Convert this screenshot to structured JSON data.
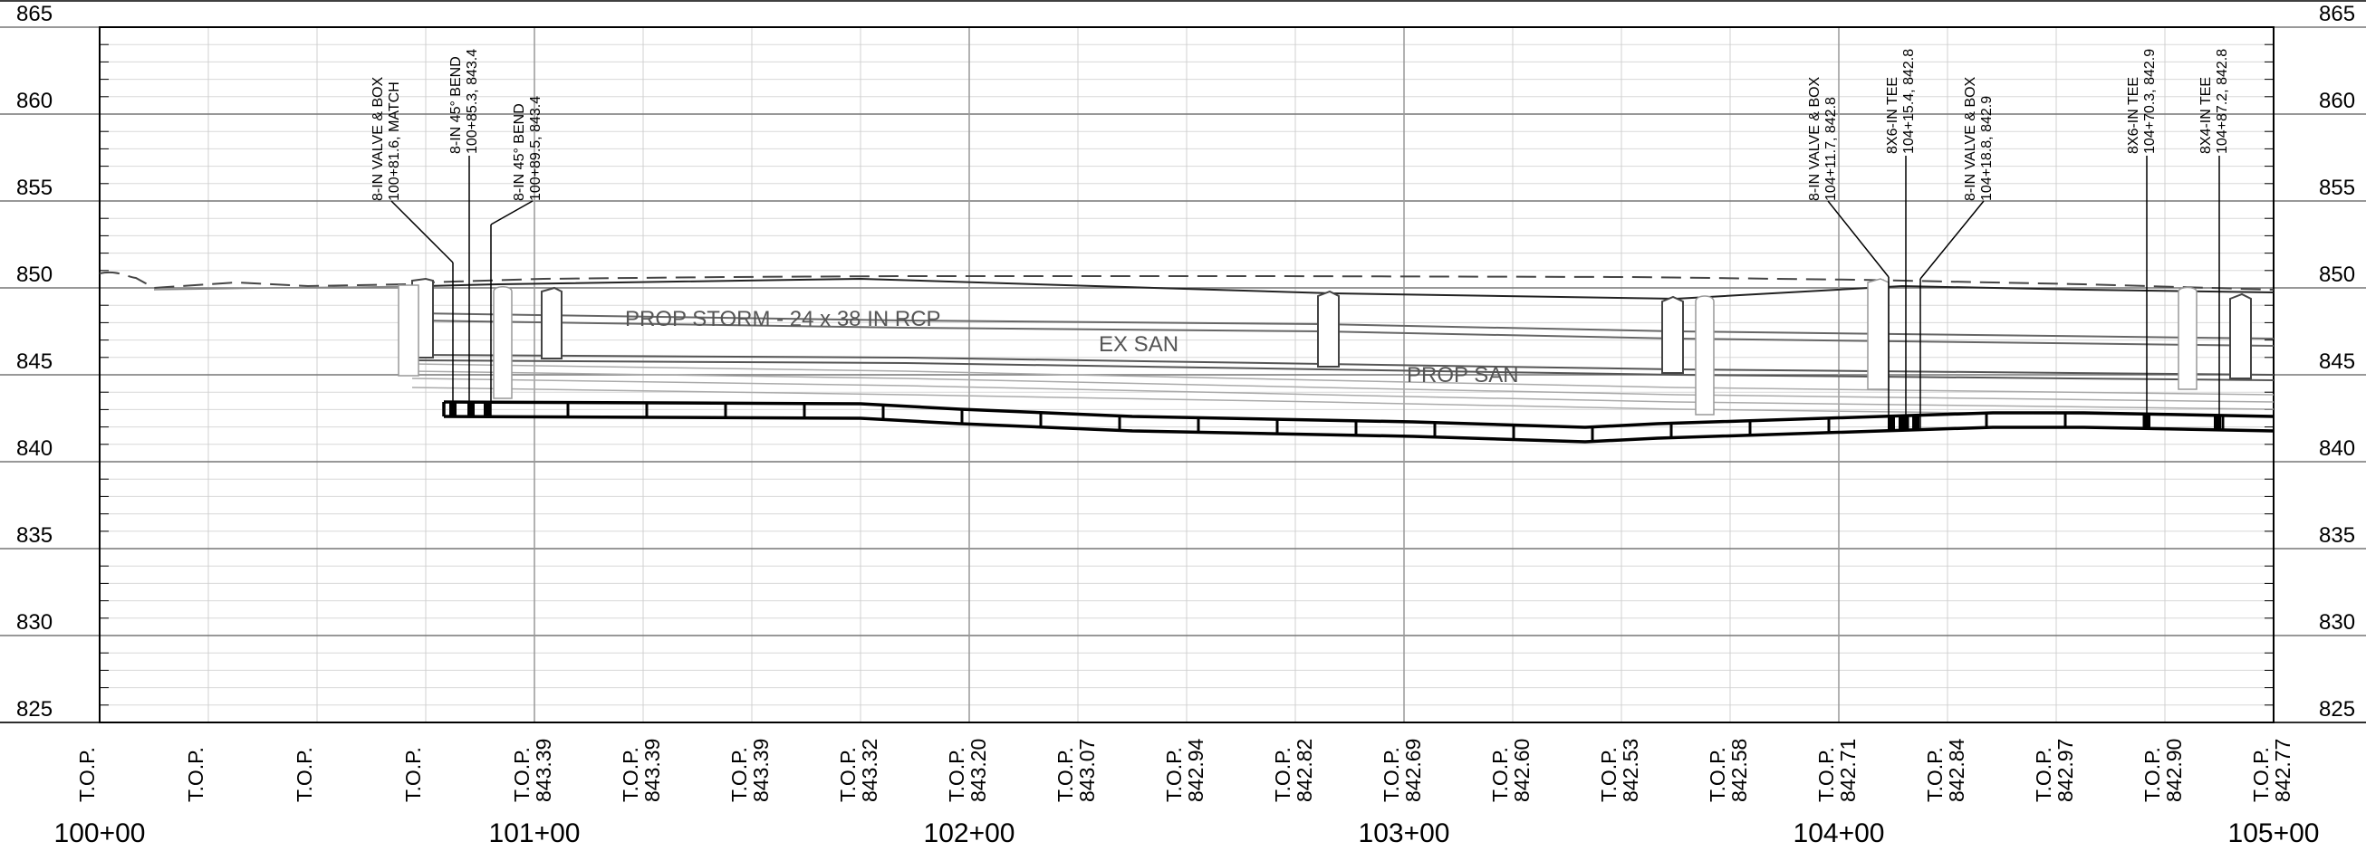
{
  "elevations": [
    "865",
    "860",
    "855",
    "850",
    "845",
    "840",
    "835",
    "830",
    "825"
  ],
  "stations": [
    "100+00",
    "101+00",
    "102+00",
    "103+00",
    "104+00",
    "105+00"
  ],
  "top_label": "T.O.P.",
  "top_values": [
    "",
    "",
    "",
    "",
    "843.39",
    "843.39",
    "843.39",
    "843.32",
    "843.20",
    "843.07",
    "842.94",
    "842.82",
    "842.69",
    "842.60",
    "842.53",
    "842.58",
    "842.71",
    "842.84",
    "842.97",
    "842.90",
    "842.77"
  ],
  "callouts": [
    {
      "line1": "8-IN VALVE & BOX",
      "line2": "100+81.6, MATCH"
    },
    {
      "line1": "8-IN 45° BEND",
      "line2": "100+85.3, 843.4"
    },
    {
      "line1": "8-IN 45° BEND",
      "line2": "100+89.5, 843.4"
    },
    {
      "line1": "8-IN VALVE & BOX",
      "line2": "104+11.7, 842.8"
    },
    {
      "line1": "8X6-IN TEE",
      "line2": "104+15.4, 842.8"
    },
    {
      "line1": "8-IN VALVE & BOX",
      "line2": "104+18.8, 842.9"
    },
    {
      "line1": "8X6-IN TEE",
      "line2": "104+70.3, 842.9"
    },
    {
      "line1": "8X4-IN TEE",
      "line2": "104+87.2, 842.8"
    }
  ],
  "pipe_labels": {
    "storm": "PROP STORM - 24 x 38 IN RCP",
    "ex_san": "EX SAN",
    "prop_san": "PROP SAN"
  }
}
